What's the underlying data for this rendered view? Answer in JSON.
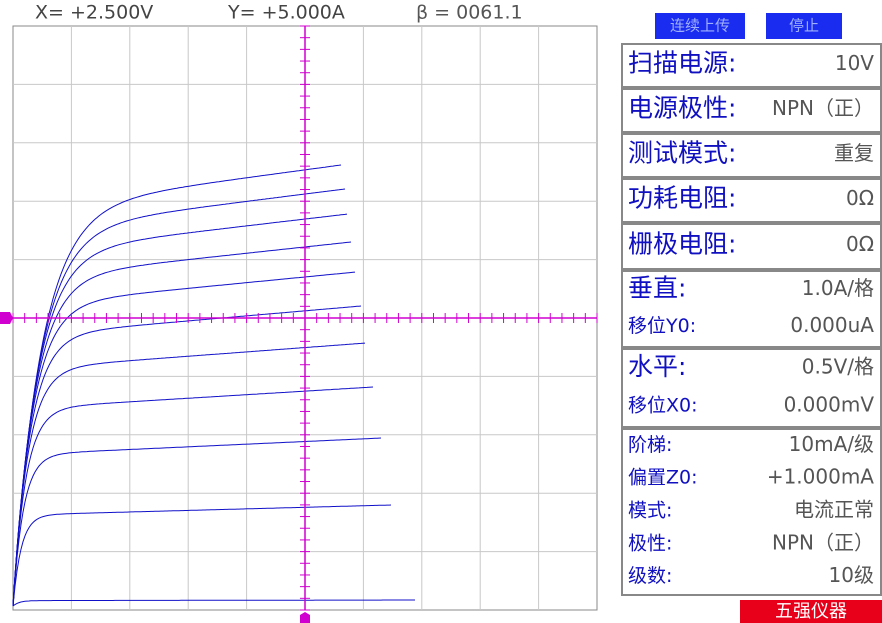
{
  "header": {
    "x_readout": "X= +2.500V",
    "y_readout": "Y= +5.000A",
    "beta_readout": "β = 0061.1"
  },
  "buttons": [
    "连续上传",
    "停止"
  ],
  "panel": [
    {
      "rows": [
        {
          "label": "扫描电源:",
          "value": "10V"
        }
      ]
    },
    {
      "rows": [
        {
          "label": "电源极性:",
          "value": "NPN（正）"
        }
      ]
    },
    {
      "rows": [
        {
          "label": "测试模式:",
          "value": "重复"
        }
      ]
    },
    {
      "rows": [
        {
          "label": "功耗电阻:",
          "value": "0Ω"
        }
      ]
    },
    {
      "rows": [
        {
          "label": "栅极电阻:",
          "value": "0Ω"
        }
      ]
    },
    {
      "rows": [
        {
          "label": "垂直:",
          "value": "1.0A/格"
        },
        {
          "label": "移位Y0:",
          "value": "0.000uA"
        }
      ]
    },
    {
      "rows": [
        {
          "label": "水平:",
          "value": "0.5V/格"
        },
        {
          "label": "移位X0:",
          "value": "0.000mV"
        }
      ]
    },
    {
      "rows": [
        {
          "label": "阶梯:",
          "value": "10mA/级"
        },
        {
          "label": "偏置Z0:",
          "value": "+1.000mA"
        },
        {
          "label": "模式:",
          "value": "电流正常"
        },
        {
          "label": "极性:",
          "value": "NPN（正）"
        },
        {
          "label": "级数:",
          "value": "10级"
        }
      ]
    }
  ],
  "brand": "五强仪器"
}
